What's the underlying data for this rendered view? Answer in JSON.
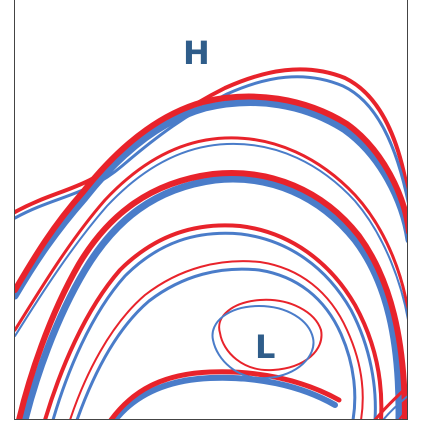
{
  "labels": {
    "high": "H",
    "low": "L"
  },
  "colors": {
    "red": "#e8232b",
    "blue": "#4a7cc9",
    "label": "#2f5d8a"
  }
}
